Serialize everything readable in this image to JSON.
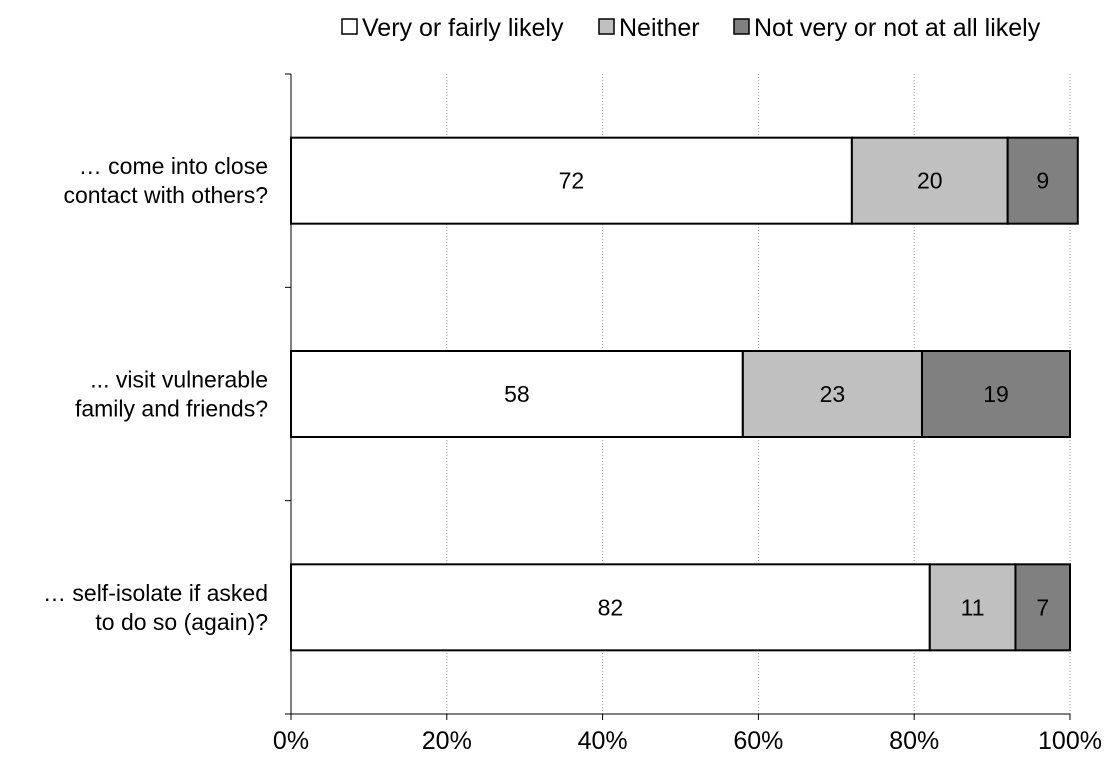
{
  "chart_data": {
    "type": "bar",
    "orientation": "horizontal",
    "stacked": true,
    "normalized": true,
    "title": "",
    "xlabel": "",
    "ylabel": "",
    "xlim": [
      0,
      100
    ],
    "x_ticks": [
      "0%",
      "20%",
      "40%",
      "60%",
      "80%",
      "100%"
    ],
    "grid": "vertical dotted",
    "legend_position": "top",
    "categories": [
      [
        "… come into close",
        "contact with others?"
      ],
      [
        "... visit vulnerable",
        "family and friends?"
      ],
      [
        "… self-isolate if asked",
        "to do so (again)?"
      ]
    ],
    "series": [
      {
        "name": "Very or fairly likely",
        "color": "#ffffff",
        "values": [
          72,
          58,
          82
        ]
      },
      {
        "name": "Neither",
        "color": "#c0c0c0",
        "values": [
          20,
          23,
          11
        ]
      },
      {
        "name": "Not very or not at all likely",
        "color": "#808080",
        "values": [
          9,
          19,
          7
        ]
      }
    ]
  }
}
